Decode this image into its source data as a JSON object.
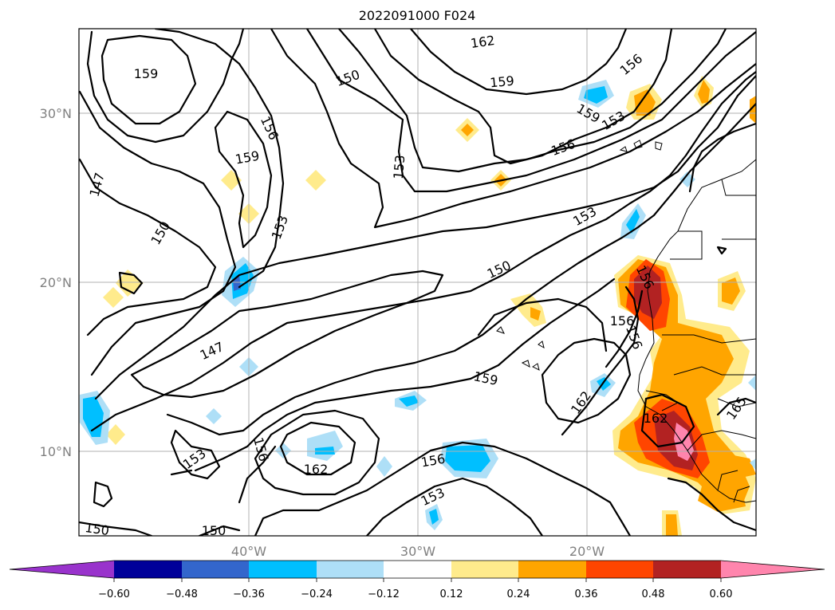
{
  "title": "2022091000 F024",
  "lat_labels": [
    "30°N",
    "20°N",
    "10°N"
  ],
  "lon_labels": [
    "40°W",
    "30°W",
    "20°W"
  ],
  "contour_labels": [
    "162",
    "159",
    "150",
    "156",
    "156",
    "159",
    "153",
    "156",
    "159",
    "147",
    "153",
    "159",
    "150",
    "153",
    "150",
    "153",
    "147",
    "159",
    "156",
    "156",
    "162",
    "162",
    "165",
    "153",
    "162",
    "156",
    "153",
    "156",
    "150",
    "150"
  ],
  "colorbar": {
    "ticks": [
      "−0.60",
      "−0.48",
      "−0.36",
      "−0.24",
      "−0.12",
      "0.12",
      "0.24",
      "0.36",
      "0.48",
      "0.60"
    ],
    "colors": [
      "#9933cc",
      "#000099",
      "#3366cc",
      "#00bfff",
      "#aedff7",
      "#ffffff",
      "#ffeb8c",
      "#ffa500",
      "#ff4500",
      "#b22222",
      "#ff85ad"
    ]
  }
}
